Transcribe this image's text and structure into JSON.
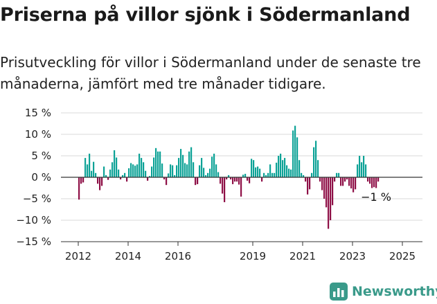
{
  "header": {
    "title": "Priserna på villor sjönk i Södermanland",
    "subtitle": "Prisutveckling för villor i Södermanland under de senaste tre månaderna, jämfört med tre månader tidigare."
  },
  "brand": {
    "name": "Newsworthy",
    "icon": "newsworthy-bar-chart-icon",
    "color": "#3a9a8a"
  },
  "chart_data": {
    "type": "bar",
    "x_start": "2012-01",
    "x_step": "month",
    "values": [
      -5.2,
      -1.5,
      -1.2,
      4.5,
      3.0,
      5.5,
      1.5,
      3.6,
      1.0,
      -1.5,
      -3.0,
      -2.0,
      2.5,
      0.5,
      -0.6,
      1.8,
      3.5,
      6.3,
      4.6,
      1.8,
      -0.5,
      0.5,
      1.0,
      -1.0,
      2.1,
      3.3,
      3.0,
      2.7,
      3.0,
      5.5,
      4.5,
      3.5,
      1.5,
      -0.8,
      0.3,
      2.5,
      4.6,
      6.8,
      6.0,
      6.0,
      3.2,
      -0.5,
      -1.8,
      0.9,
      3.0,
      2.8,
      0.5,
      2.8,
      4.5,
      6.6,
      5.2,
      3.3,
      3.0,
      6.0,
      7.0,
      3.5,
      -1.8,
      -1.6,
      2.8,
      4.5,
      2.2,
      0.5,
      1.0,
      2.0,
      4.8,
      5.5,
      3.0,
      1.2,
      -1.5,
      -3.8,
      -5.8,
      -0.5,
      0.5,
      -0.5,
      -1.6,
      -1.0,
      -1.0,
      -1.7,
      -4.5,
      0.6,
      0.8,
      -0.8,
      -1.4,
      4.3,
      4.0,
      2.3,
      2.5,
      2.0,
      -1.0,
      1.0,
      0.5,
      1.0,
      3.0,
      1.0,
      1.0,
      3.4,
      5.0,
      5.5,
      4.0,
      4.5,
      2.8,
      2.0,
      1.8,
      10.9,
      12.0,
      9.3,
      4.0,
      1.0,
      0.5,
      -1.0,
      -4.0,
      -2.8,
      1.0,
      7.0,
      8.5,
      4.0,
      -1.0,
      -3.0,
      -5.0,
      -7.0,
      -12.0,
      -10.0,
      -6.5,
      -1.0,
      1.0,
      1.0,
      -2.0,
      -2.0,
      -1.0,
      -0.5,
      -2.0,
      -2.6,
      -3.5,
      -2.8,
      3.0,
      5.0,
      3.5,
      5.0,
      3.0,
      -1.0,
      -1.5,
      -2.5,
      -2.3,
      -2.5,
      -1.0
    ],
    "positive_color": "#0ca296",
    "negative_color": "#8e0f46",
    "y_ticks": [
      15,
      10,
      5,
      0,
      -5,
      -10,
      -15
    ],
    "y_tick_labels": [
      "15 %",
      "10 %",
      "5 %",
      "0 %",
      "−5 %",
      "−10 %",
      "−15 %"
    ],
    "ylim": [
      -15,
      15
    ],
    "x_ticks": [
      2012,
      2014,
      2016,
      2019,
      2021,
      2023,
      2025
    ],
    "x_tick_labels": [
      "2012",
      "2014",
      "2016",
      "2019",
      "2021",
      "2023",
      "2025"
    ],
    "annotation": {
      "text": "−1 %"
    },
    "grid": "horizontal"
  }
}
